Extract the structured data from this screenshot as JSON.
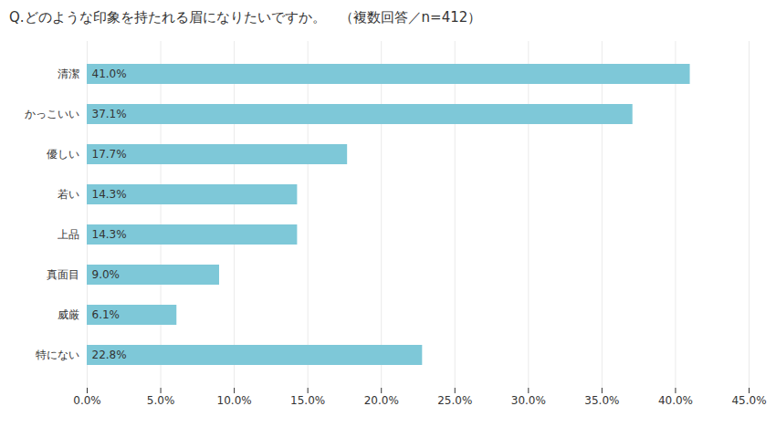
{
  "chart_data": {
    "type": "bar",
    "orientation": "horizontal",
    "title": "Q.どのような印象を持たれる眉になりたいですか。　（複数回答／n=412）",
    "categories": [
      "清潔",
      "かっこいい",
      "優しい",
      "若い",
      "上品",
      "真面目",
      "威厳",
      "特にない"
    ],
    "values": [
      41.0,
      37.1,
      17.7,
      14.3,
      14.3,
      9.0,
      6.1,
      22.8
    ],
    "value_labels": [
      "41.0%",
      "37.1%",
      "17.7%",
      "14.3%",
      "14.3%",
      "9.0%",
      "6.1%",
      "22.8%"
    ],
    "data_labels": true,
    "color": "#7EC8D8",
    "xlim": [
      0,
      45.0
    ],
    "xticks": [
      {
        "value": 0,
        "label": "0.0%"
      },
      {
        "value": 5,
        "label": "5.0%"
      },
      {
        "value": 10,
        "label": "10.0%"
      },
      {
        "value": 15,
        "label": "15.0%"
      },
      {
        "value": 20,
        "label": "20.0%"
      },
      {
        "value": 25,
        "label": "25.0%"
      },
      {
        "value": 30,
        "label": "30.0%"
      },
      {
        "value": 35,
        "label": "35.0%"
      },
      {
        "value": 40,
        "label": "40.0%"
      },
      {
        "value": 45,
        "label": "45.0%"
      }
    ],
    "grid": true
  }
}
